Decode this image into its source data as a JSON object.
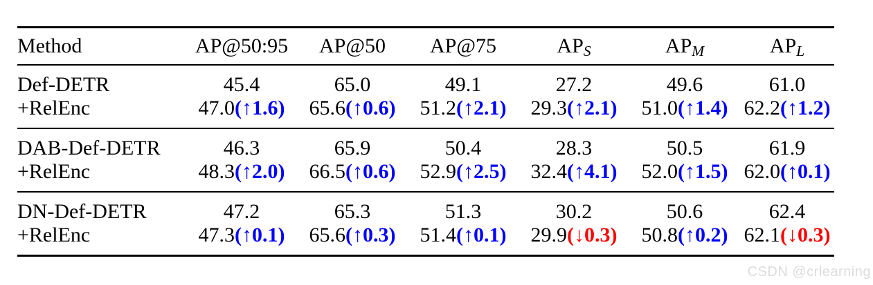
{
  "colors": {
    "increase_blue": "#0000ff",
    "decrease_red": "#ff0000",
    "text_black": "#000000",
    "watermark_gray": "#dcdcdc"
  },
  "glyphs": {
    "up_arrow": "↑",
    "down_arrow": "↓"
  },
  "watermark": "CSDN @crlearning",
  "table": {
    "headers": [
      {
        "label": "Method"
      },
      {
        "label": "AP@50:95"
      },
      {
        "label": "AP@50"
      },
      {
        "label": "AP@75"
      },
      {
        "label": "AP",
        "sub": "S"
      },
      {
        "label": "AP",
        "sub": "M"
      },
      {
        "label": "AP",
        "sub": "L"
      }
    ],
    "groups": [
      {
        "rows": [
          {
            "method": "Def-DETR",
            "cells": [
              {
                "v": "45.4"
              },
              {
                "v": "65.0"
              },
              {
                "v": "49.1"
              },
              {
                "v": "27.2"
              },
              {
                "v": "49.6"
              },
              {
                "v": "61.0"
              }
            ]
          },
          {
            "method": "+RelEnc",
            "cells": [
              {
                "v": "47.0",
                "delta": "1.6",
                "dir": "up"
              },
              {
                "v": "65.6",
                "delta": "0.6",
                "dir": "up"
              },
              {
                "v": "51.2",
                "delta": "2.1",
                "dir": "up"
              },
              {
                "v": "29.3",
                "delta": "2.1",
                "dir": "up"
              },
              {
                "v": "51.0",
                "delta": "1.4",
                "dir": "up"
              },
              {
                "v": "62.2",
                "delta": "1.2",
                "dir": "up"
              }
            ]
          }
        ]
      },
      {
        "rows": [
          {
            "method": "DAB-Def-DETR",
            "cells": [
              {
                "v": "46.3"
              },
              {
                "v": "65.9"
              },
              {
                "v": "50.4"
              },
              {
                "v": "28.3"
              },
              {
                "v": "50.5"
              },
              {
                "v": "61.9"
              }
            ]
          },
          {
            "method": "+RelEnc",
            "cells": [
              {
                "v": "48.3",
                "delta": "2.0",
                "dir": "up"
              },
              {
                "v": "66.5",
                "delta": "0.6",
                "dir": "up"
              },
              {
                "v": "52.9",
                "delta": "2.5",
                "dir": "up"
              },
              {
                "v": "32.4",
                "delta": "4.1",
                "dir": "up"
              },
              {
                "v": "52.0",
                "delta": "1.5",
                "dir": "up"
              },
              {
                "v": "62.0",
                "delta": "0.1",
                "dir": "up"
              }
            ]
          }
        ]
      },
      {
        "rows": [
          {
            "method": "DN-Def-DETR",
            "cells": [
              {
                "v": "47.2"
              },
              {
                "v": "65.3"
              },
              {
                "v": "51.3"
              },
              {
                "v": "30.2"
              },
              {
                "v": "50.6"
              },
              {
                "v": "62.4"
              }
            ]
          },
          {
            "method": "+RelEnc",
            "cells": [
              {
                "v": "47.3",
                "delta": "0.1",
                "dir": "up"
              },
              {
                "v": "65.6",
                "delta": "0.3",
                "dir": "up"
              },
              {
                "v": "51.4",
                "delta": "0.1",
                "dir": "up"
              },
              {
                "v": "29.9",
                "delta": "0.3",
                "dir": "down"
              },
              {
                "v": "50.8",
                "delta": "0.2",
                "dir": "up"
              },
              {
                "v": "62.1",
                "delta": "0.3",
                "dir": "down"
              }
            ]
          }
        ]
      }
    ]
  }
}
